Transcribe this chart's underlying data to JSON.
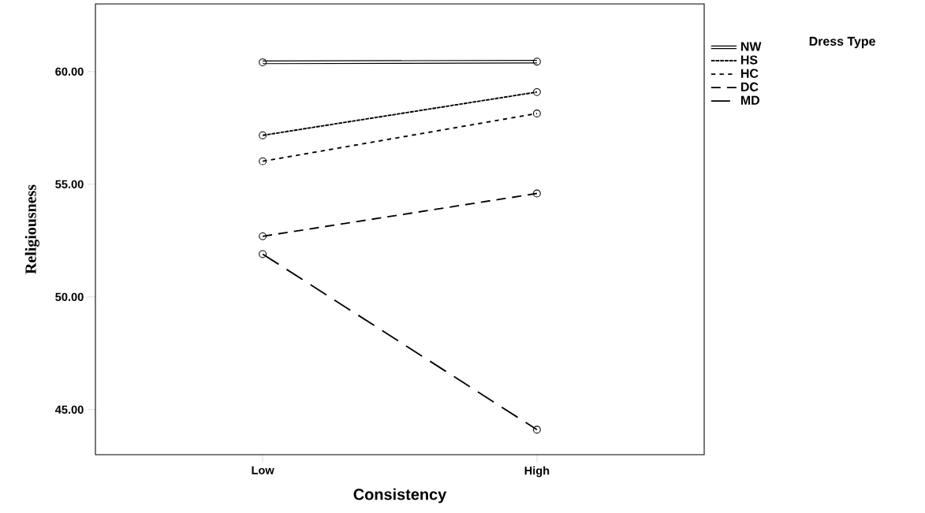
{
  "chart_data": {
    "type": "line",
    "xlabel": "Consistency",
    "ylabel": "Religiousness",
    "legend_title": "Dress Type",
    "categories": [
      "Low",
      "High"
    ],
    "series": [
      {
        "name": "NW",
        "color": "#000000",
        "values": [
          60.41,
          60.44
        ],
        "line_style": "solid"
      },
      {
        "name": "HS",
        "color": "#000000",
        "values": [
          57.17,
          59.09
        ],
        "line_style": "dashed"
      },
      {
        "name": "HC",
        "color": "#000000",
        "values": [
          56.02,
          58.14
        ],
        "line_style": "dashed"
      },
      {
        "name": "DC",
        "color": "#000000",
        "values": [
          52.69,
          54.59
        ],
        "line_style": "dashed"
      },
      {
        "name": "MD",
        "color": "#000000",
        "values": [
          51.9,
          44.11
        ],
        "line_style": "dashed"
      }
    ],
    "ylim": [
      43,
      63
    ],
    "yticks": [
      {
        "value": 45,
        "label": "45.00"
      },
      {
        "value": 50,
        "label": "50.00"
      },
      {
        "value": 55,
        "label": "55.00"
      },
      {
        "value": 60,
        "label": "60.00"
      }
    ],
    "marker": "circle",
    "grid": false,
    "legend": "top right"
  }
}
